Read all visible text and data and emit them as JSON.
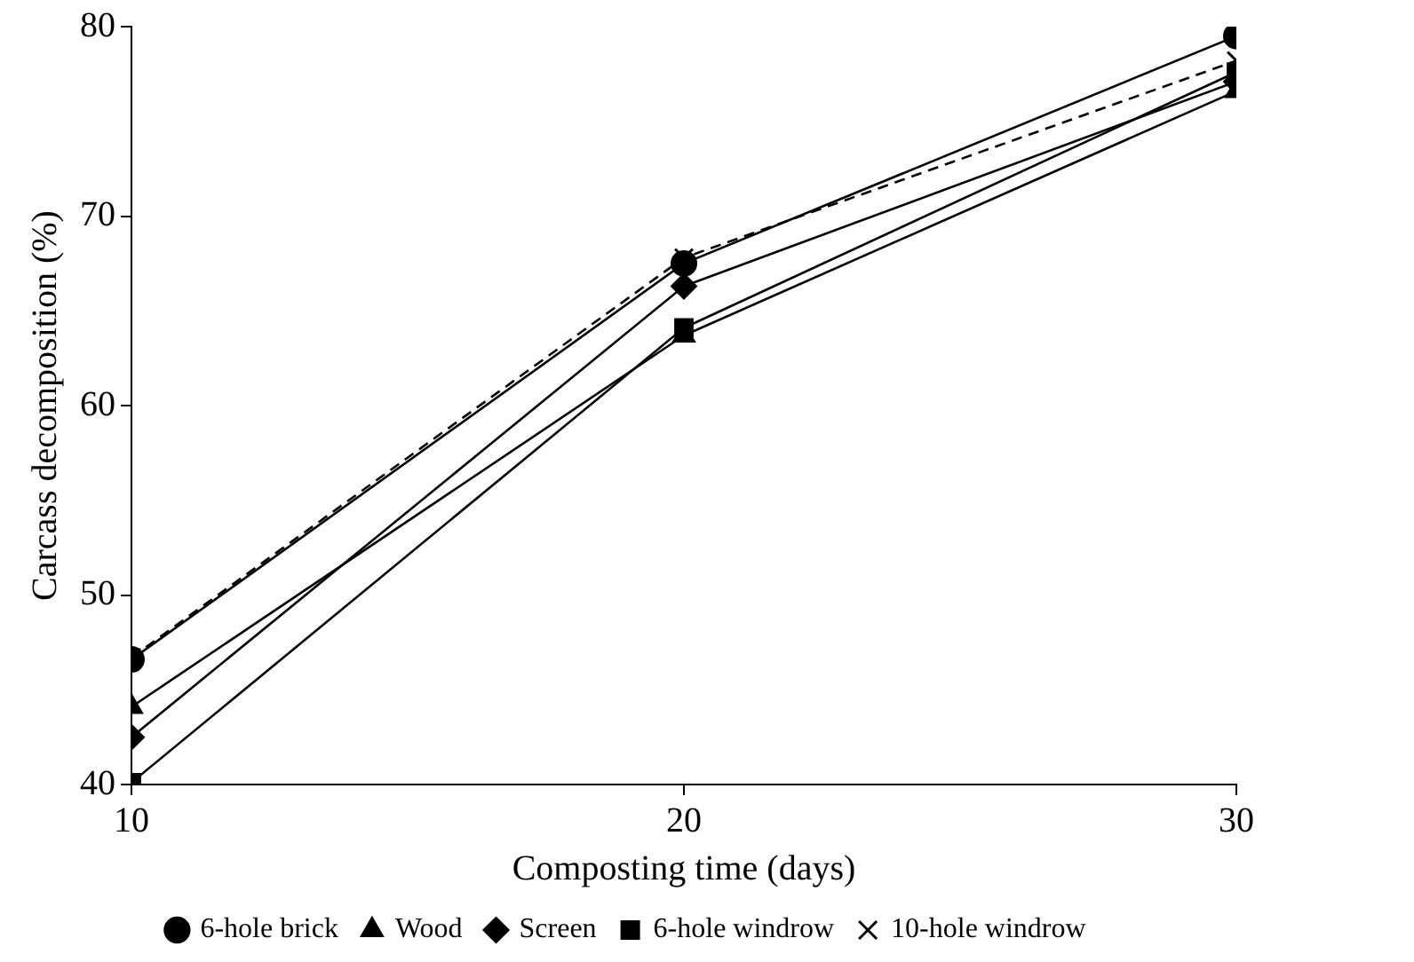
{
  "chart_data": {
    "type": "line",
    "xlabel": "Composting time (days)",
    "ylabel": "Carcass decomposition (%)",
    "x": [
      10,
      20,
      30
    ],
    "xlim": [
      10,
      30
    ],
    "xticks": [
      10,
      20,
      30
    ],
    "ylim": [
      40,
      80
    ],
    "yticks": [
      40,
      50,
      60,
      70,
      80
    ],
    "grid": false,
    "legend": "bottom",
    "series": [
      {
        "name": "6-hole brick",
        "color": "#000000",
        "marker": "circle",
        "line_style": "solid",
        "values": [
          46.6,
          67.5,
          79.5
        ]
      },
      {
        "name": "Wood",
        "color": "#000000",
        "marker": "triangle",
        "line_style": "solid",
        "values": [
          44.1,
          63.7,
          76.6
        ]
      },
      {
        "name": "Screen",
        "color": "#000000",
        "marker": "diamond",
        "line_style": "solid",
        "values": [
          42.5,
          66.3,
          77.1
        ]
      },
      {
        "name": "6-hole windrow",
        "color": "#000000",
        "marker": "square",
        "line_style": "solid",
        "values": [
          40.1,
          64.1,
          77.6
        ]
      },
      {
        "name": "10-hole windrow",
        "color": "#000000",
        "marker": "cross",
        "line_style": "dashed",
        "values": [
          46.7,
          67.8,
          78.2
        ]
      }
    ]
  }
}
